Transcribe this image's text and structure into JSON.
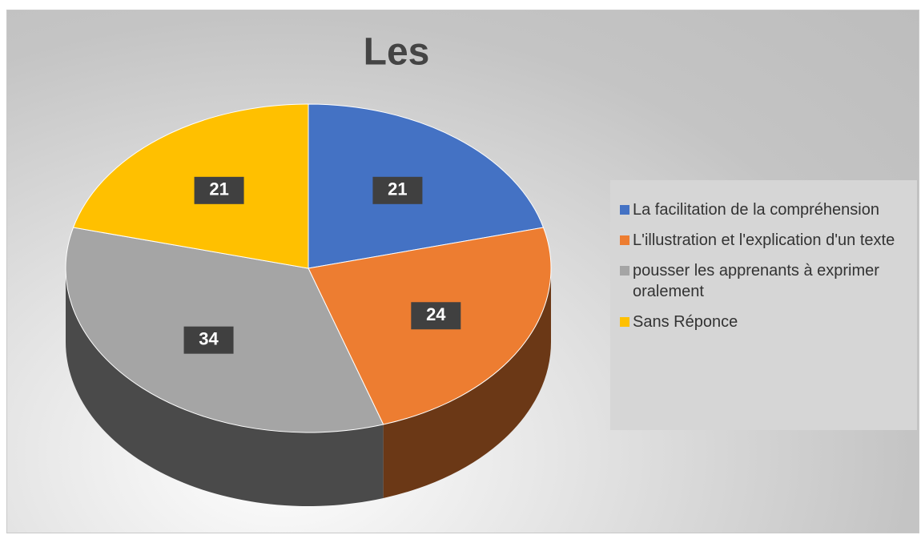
{
  "chart_data": {
    "type": "pie",
    "title": "Les",
    "categories": [
      "La facilitation de la compréhension",
      "L'illustration et l'explication d'un texte",
      "pousser les apprenants à exprimer oralement",
      "Sans Réponce"
    ],
    "values": [
      21,
      24,
      34,
      21
    ],
    "colors": [
      "#4472c4",
      "#ed7d31",
      "#a5a5a5",
      "#ffc000"
    ],
    "legend": "right"
  }
}
